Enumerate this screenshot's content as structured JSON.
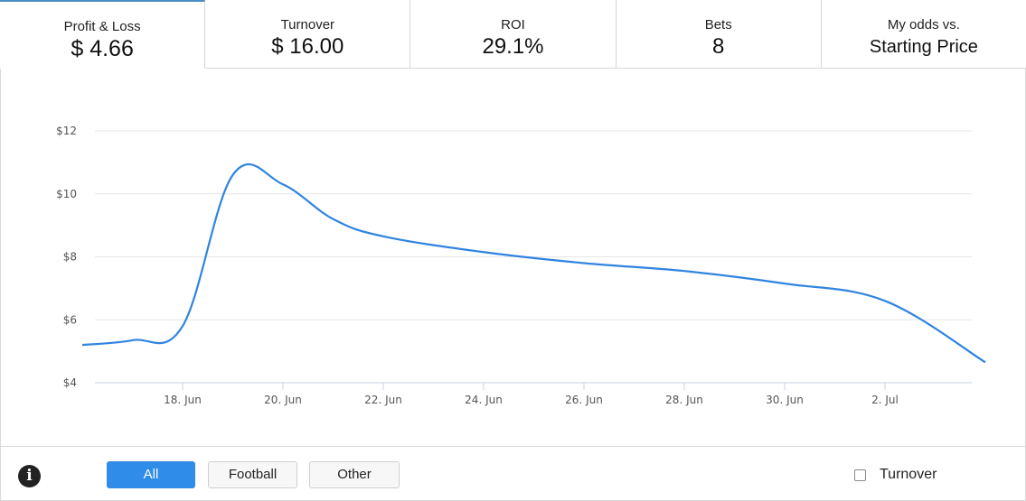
{
  "stats": [
    {
      "label": "Profit & Loss",
      "value": "$ 4.66"
    },
    {
      "label": "Turnover",
      "value": "$ 16.00"
    },
    {
      "label": "ROI",
      "value": "29.1%"
    },
    {
      "label": "Bets",
      "value": "8"
    },
    {
      "label": "My odds vs.",
      "value": "Starting Price"
    }
  ],
  "chart_data": {
    "type": "line",
    "series": [
      {
        "color": "#2f84e0",
        "x": [
          "2016-06-16",
          "2016-06-17",
          "2016-06-18",
          "2016-06-19",
          "2016-06-20",
          "2016-06-21",
          "2016-06-22",
          "2016-06-24",
          "2016-06-26",
          "2016-06-28",
          "2016-06-30",
          "2016-07-02",
          "2016-07-04"
        ],
        "values": [
          5.2,
          5.35,
          5.8,
          10.6,
          10.3,
          9.2,
          8.65,
          8.15,
          7.8,
          7.55,
          7.15,
          6.6,
          4.65
        ]
      }
    ],
    "xticks": [
      {
        "date": "2016-06-18",
        "label": "18. Jun"
      },
      {
        "date": "2016-06-20",
        "label": "20. Jun"
      },
      {
        "date": "2016-06-22",
        "label": "22. Jun"
      },
      {
        "date": "2016-06-24",
        "label": "24. Jun"
      },
      {
        "date": "2016-06-26",
        "label": "26. Jun"
      },
      {
        "date": "2016-06-28",
        "label": "28. Jun"
      },
      {
        "date": "2016-06-30",
        "label": "30. Jun"
      },
      {
        "date": "2016-07-02",
        "label": "2. Jul"
      }
    ],
    "yticks": [
      {
        "value": 4,
        "label": "$4"
      },
      {
        "value": 6,
        "label": "$6"
      },
      {
        "value": 8,
        "label": "$8"
      },
      {
        "value": 10,
        "label": "$10"
      },
      {
        "value": 12,
        "label": "$12"
      }
    ],
    "ylim": [
      4,
      12
    ],
    "grid": true,
    "title": "",
    "xlabel": "",
    "ylabel": ""
  },
  "footer": {
    "info_icon": "i",
    "filters": [
      "All",
      "Football",
      "Other"
    ],
    "active_filter": "All",
    "turnover_label": "Turnover",
    "turnover_checked": false
  },
  "colors": {
    "accent": "#2f8ce8",
    "line": "#2f84e0",
    "grid": "#e6e6e6",
    "tab_border": "#4a90c8"
  }
}
